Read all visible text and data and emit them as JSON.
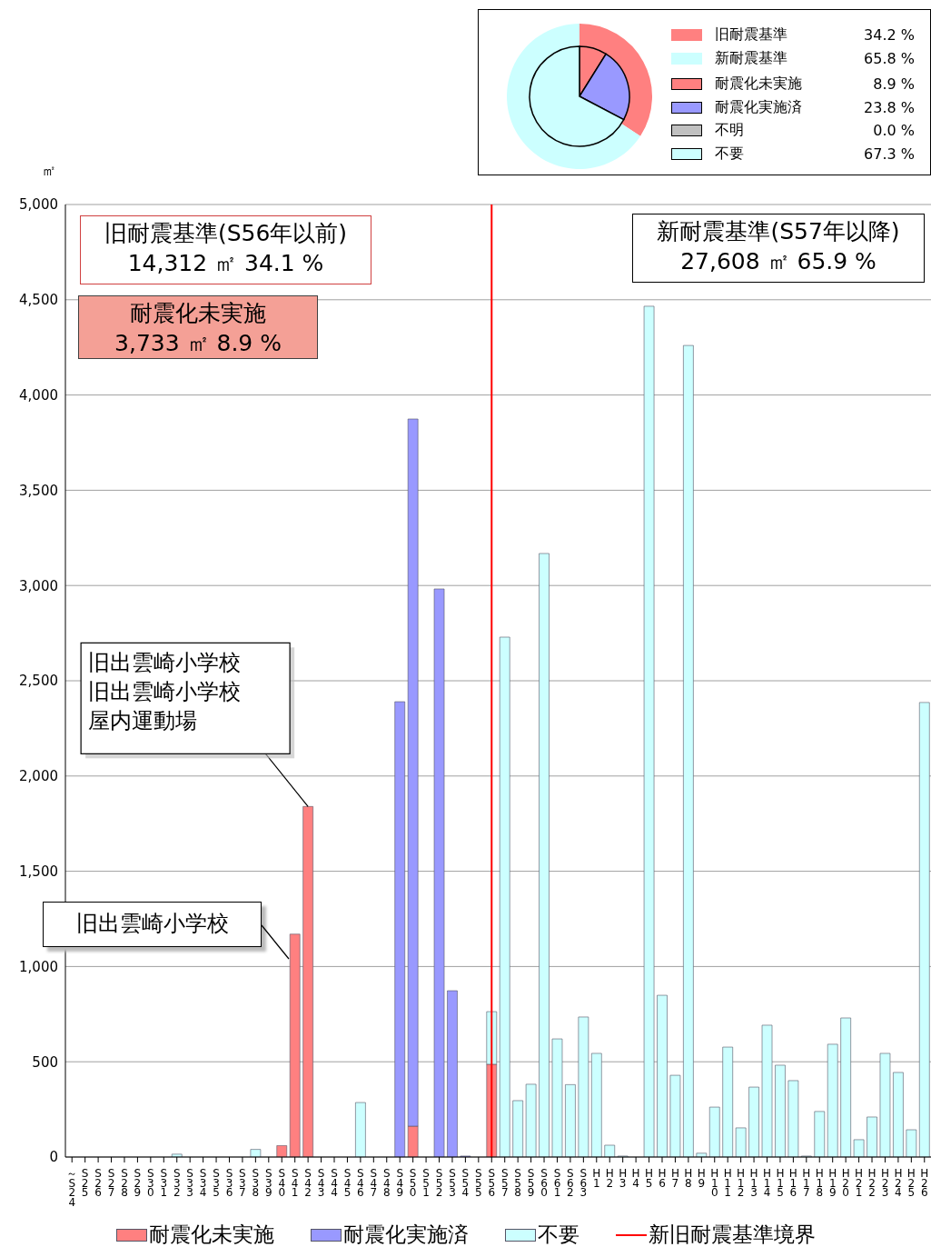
{
  "chart_data": [
    {
      "type": "donut",
      "categories": [
        "旧耐震基準",
        "新耐震基準"
      ],
      "values": [
        34.2,
        65.8
      ],
      "colors": [
        "#ff8080",
        "#ccffff"
      ],
      "value_labels": [
        "34.2 %",
        "65.8 %"
      ],
      "legend": "right"
    },
    {
      "type": "pie",
      "categories": [
        "耐震化未実施",
        "耐震化実施済",
        "不明",
        "不要"
      ],
      "values": [
        8.9,
        23.8,
        0.0,
        67.3
      ],
      "colors": [
        "#ff8080",
        "#9999ff",
        "#c0c0c0",
        "#ccffff"
      ],
      "value_labels": [
        "8.9 %",
        "23.8 %",
        "0.0 %",
        "67.3 %"
      ],
      "legend": "right"
    },
    {
      "type": "bar",
      "ylabel": "㎡",
      "stacked": true,
      "grid": "y",
      "legend": "bottom",
      "categories": [
        "～S24",
        "S25",
        "S26",
        "S27",
        "S28",
        "S29",
        "S30",
        "S31",
        "S32",
        "S33",
        "S34",
        "S35",
        "S36",
        "S37",
        "S38",
        "S39",
        "S40",
        "S41",
        "S42",
        "S43",
        "S44",
        "S45",
        "S46",
        "S47",
        "S48",
        "S49",
        "S50",
        "S51",
        "S52",
        "S53",
        "S54",
        "S55",
        "S56",
        "S57",
        "S58",
        "S59",
        "S60",
        "S61",
        "S62",
        "S63",
        "H1",
        "H2",
        "H3",
        "H4",
        "H5",
        "H6",
        "H7",
        "H8",
        "H9",
        "H10",
        "H11",
        "H12",
        "H13",
        "H14",
        "H15",
        "H16",
        "H17",
        "H18",
        "H19",
        "H20",
        "H21",
        "H22",
        "H23",
        "H24",
        "H25",
        "H26"
      ],
      "ylim": [
        0,
        5000
      ],
      "yticks": [
        0,
        500,
        {
          "value": 1000,
          "label": "1,000"
        },
        {
          "value": 1500,
          "label": "1,500"
        },
        {
          "value": 2000,
          "label": "2,000"
        },
        {
          "value": 2500,
          "label": "2,500"
        },
        {
          "value": 3000,
          "label": "3,000"
        },
        {
          "value": 3500,
          "label": "3,500"
        },
        {
          "value": 4000,
          "label": "4,000"
        },
        {
          "value": 4500,
          "label": "4,500"
        },
        {
          "value": 5000,
          "label": "5,000"
        }
      ],
      "series": [
        {
          "name": "耐震化未実施",
          "color": "#ff8080",
          "values": [
            null,
            null,
            null,
            null,
            null,
            null,
            null,
            null,
            null,
            null,
            null,
            null,
            null,
            null,
            null,
            null,
            60,
            1170,
            1840,
            null,
            null,
            null,
            null,
            null,
            null,
            null,
            162,
            null,
            null,
            null,
            null,
            null,
            487,
            null,
            null,
            null,
            null,
            null,
            null,
            null,
            null,
            null,
            null,
            null,
            null,
            null,
            null,
            null,
            null,
            null,
            null,
            null,
            null,
            null,
            null,
            null,
            null,
            null,
            null,
            null,
            null,
            null,
            null,
            null,
            null,
            null
          ]
        },
        {
          "name": "耐震化実施済",
          "color": "#9999ff",
          "values": [
            null,
            null,
            null,
            null,
            null,
            null,
            null,
            null,
            null,
            null,
            null,
            null,
            null,
            null,
            null,
            null,
            null,
            null,
            null,
            null,
            null,
            null,
            null,
            null,
            null,
            2390,
            3712,
            null,
            2982,
            873,
            5,
            null,
            null,
            null,
            null,
            null,
            null,
            null,
            null,
            null,
            null,
            null,
            null,
            null,
            null,
            null,
            null,
            null,
            null,
            null,
            null,
            null,
            null,
            null,
            null,
            null,
            null,
            null,
            null,
            null,
            null,
            null,
            null,
            null,
            null,
            null
          ]
        },
        {
          "name": "不要",
          "color": "#ccffff",
          "values": [
            null,
            null,
            null,
            null,
            null,
            null,
            null,
            null,
            15,
            null,
            null,
            null,
            null,
            null,
            40,
            null,
            null,
            null,
            null,
            null,
            null,
            null,
            286,
            null,
            null,
            null,
            null,
            null,
            null,
            null,
            null,
            null,
            276,
            2729,
            296,
            382,
            3168,
            620,
            380,
            735,
            544,
            62,
            5,
            null,
            4466,
            849,
            429,
            4260,
            20,
            262,
            577,
            153,
            367,
            692,
            482,
            401,
            5,
            239,
            592,
            730,
            91,
            210,
            544,
            444,
            143,
            2386
          ]
        }
      ],
      "ref_lines": [
        {
          "axis": "x",
          "value": "S56",
          "label": "新旧耐震基準境界",
          "color": "#ff0000"
        }
      ],
      "annotations": [
        "旧耐震基準(S56年以前)\n14,312 ㎡ 34.1 %",
        "耐震化未実施\n3,733 ㎡ 8.9 %",
        "新耐震基準(S57年以降)\n27,608 ㎡ 65.9 %",
        {
          "text": "旧出雲崎小学校旧出雲崎小学校屋内運動場",
          "x": "S42",
          "y": 1840
        },
        "旧出雲崎小学校"
      ]
    }
  ]
}
